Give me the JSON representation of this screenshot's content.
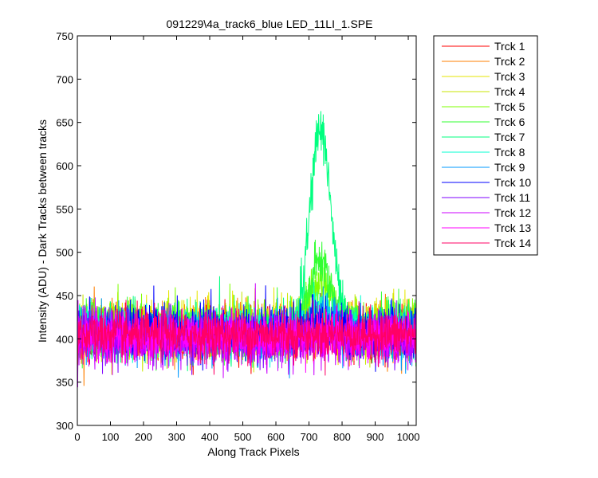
{
  "chart_data": {
    "type": "line",
    "title": "091229\\4a_track6_blue LED_11LI_1.SPE",
    "xlabel": "Along Track Pixels",
    "ylabel": "Intensity (ADU) - Dark Tracks between tracks",
    "xlim": [
      0,
      1024
    ],
    "ylim": [
      300,
      750
    ],
    "xticks": [
      0,
      100,
      200,
      300,
      400,
      500,
      600,
      700,
      800,
      900,
      1000
    ],
    "yticks": [
      300,
      350,
      400,
      450,
      500,
      550,
      600,
      650,
      700,
      750
    ],
    "grid": false,
    "legend_position": "outside-right",
    "series": [
      {
        "name": "Trck 1",
        "color": "#ff0000",
        "baseline": 407,
        "noise": 14,
        "peak": 0
      },
      {
        "name": "Trck 2",
        "color": "#ff7f00",
        "baseline": 410,
        "noise": 16,
        "peak": 0
      },
      {
        "name": "Trck 3",
        "color": "#e6e600",
        "baseline": 415,
        "noise": 15,
        "peak": 0
      },
      {
        "name": "Trck 4",
        "color": "#c8e600",
        "baseline": 412,
        "noise": 15,
        "peak": 0
      },
      {
        "name": "Trck 5",
        "color": "#7fff00",
        "baseline": 410,
        "noise": 15,
        "peak": 60
      },
      {
        "name": "Trck 6",
        "color": "#33ff33",
        "baseline": 410,
        "noise": 15,
        "peak": 80
      },
      {
        "name": "Trck 7",
        "color": "#00ff7f",
        "baseline": 408,
        "noise": 15,
        "peak": 235
      },
      {
        "name": "Trck 8",
        "color": "#00ffd0",
        "baseline": 408,
        "noise": 14,
        "peak": 30
      },
      {
        "name": "Trck 9",
        "color": "#0099ff",
        "baseline": 405,
        "noise": 15,
        "peak": 15
      },
      {
        "name": "Trck 10",
        "color": "#0000ff",
        "baseline": 408,
        "noise": 15,
        "peak": 10
      },
      {
        "name": "Trck 11",
        "color": "#7f00ff",
        "baseline": 402,
        "noise": 14,
        "peak": 0
      },
      {
        "name": "Trck 12",
        "color": "#cc00ff",
        "baseline": 400,
        "noise": 15,
        "peak": 0
      },
      {
        "name": "Trck 13",
        "color": "#ff00ff",
        "baseline": 402,
        "noise": 14,
        "peak": 0
      },
      {
        "name": "Trck 14",
        "color": "#ff0066",
        "baseline": 405,
        "noise": 14,
        "peak": 0
      }
    ],
    "peak_center": 735,
    "peak_width": 45
  }
}
